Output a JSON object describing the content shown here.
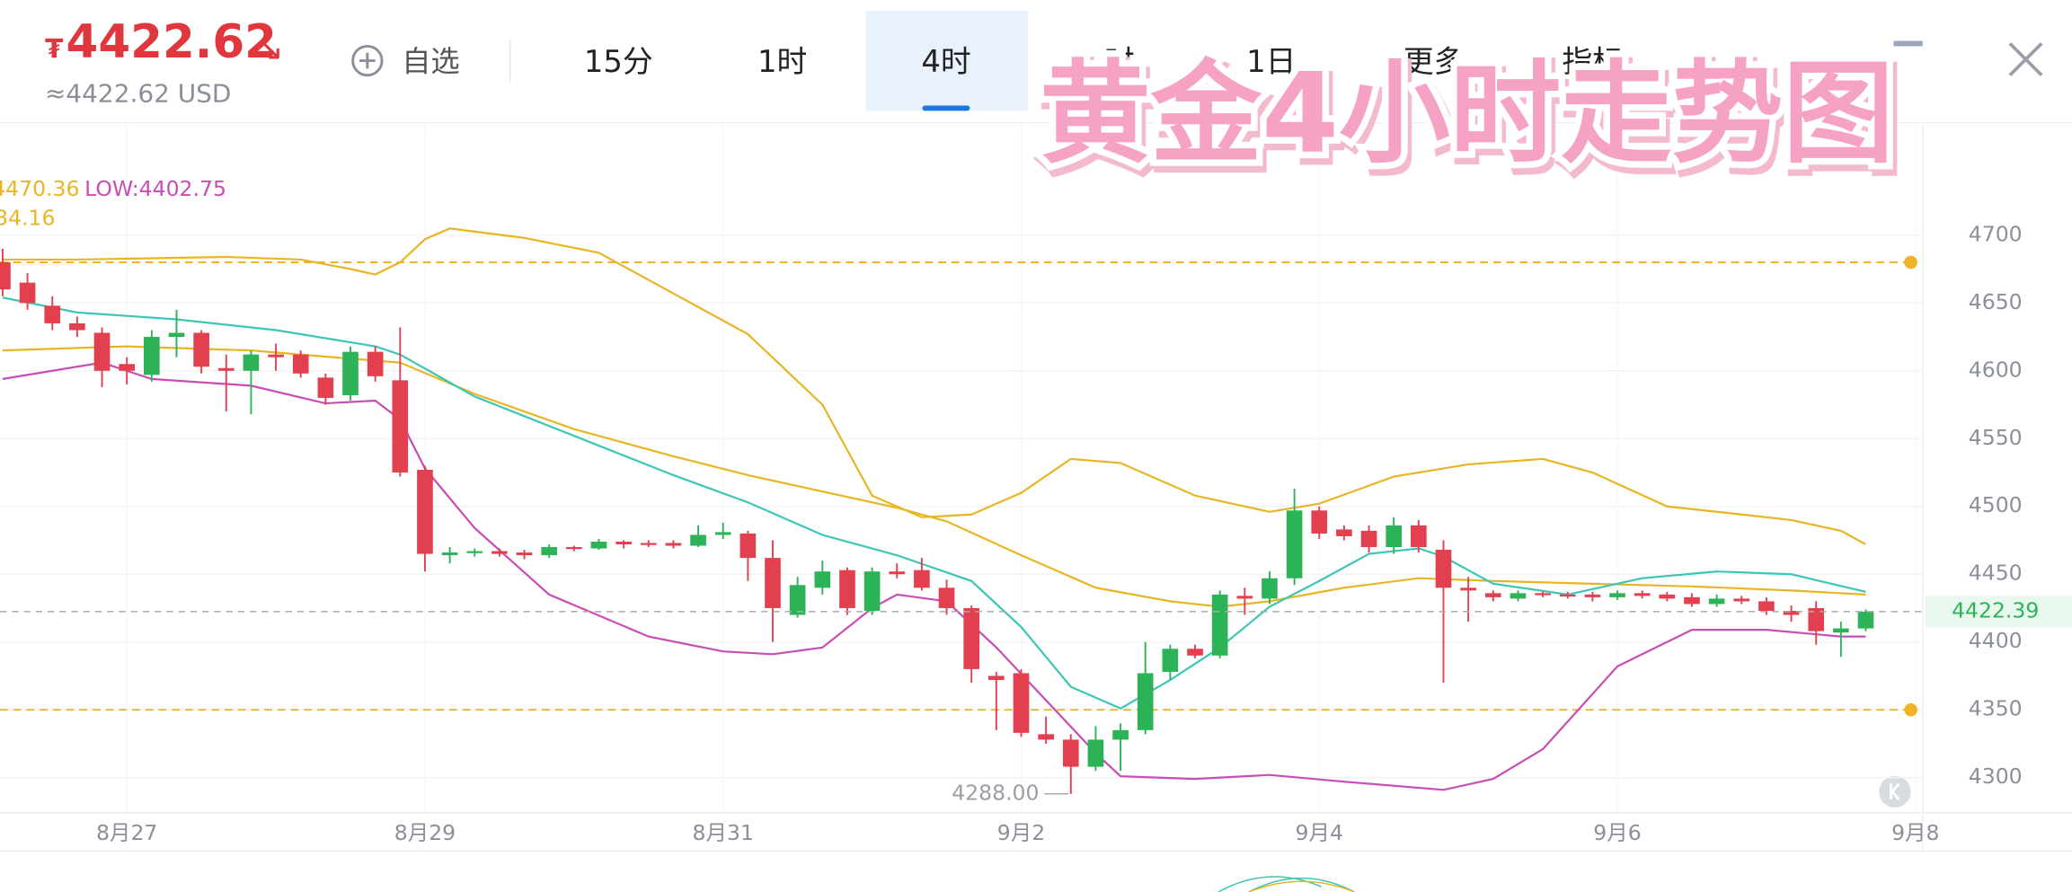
{
  "header": {
    "currency_symbol": "₮",
    "price": "4422.62",
    "arrow": "↘",
    "approx": "≈4422.62 USD",
    "watchlist": "自选",
    "tabs": [
      "15分",
      "1时",
      "4时",
      "时",
      "1日",
      "更多",
      "指标"
    ],
    "selected_tab": 2,
    "overlay_title": "黄金4小时走势图"
  },
  "chart_data": {
    "type": "candlestick",
    "x": [
      0,
      1,
      2,
      3,
      4,
      5,
      6,
      7,
      8,
      9,
      10,
      11,
      12,
      13,
      14,
      15,
      16,
      17,
      18,
      19,
      20,
      21,
      22,
      23,
      24,
      25,
      26,
      27,
      28,
      29,
      30,
      31,
      32,
      33,
      34,
      35,
      36,
      37,
      38,
      39,
      40,
      41,
      42,
      43,
      44,
      45,
      46,
      47,
      48,
      49,
      50,
      51,
      52,
      53,
      54,
      55,
      56,
      57,
      58,
      59,
      60,
      61,
      62,
      63,
      64,
      65,
      66,
      67,
      68,
      69,
      70,
      71,
      72,
      73,
      74,
      75
    ],
    "open": [
      4680,
      4665,
      4648,
      4635,
      4628,
      4605,
      4597,
      4625,
      4628,
      4602,
      4600,
      4612,
      4612,
      4595,
      4582,
      4614,
      4593,
      4527,
      4464,
      4466,
      4467,
      4466,
      4464,
      4470,
      4469,
      4474,
      4473,
      4473,
      4471,
      4479,
      4480,
      4462,
      4420,
      4440,
      4453,
      4423,
      4452,
      4453,
      4440,
      4425,
      4375,
      4377,
      4332,
      4328,
      4308,
      4328,
      4335,
      4378,
      4395,
      4390,
      4434,
      4432,
      4447,
      4497,
      4483,
      4482,
      4470,
      4486,
      4468,
      4440,
      4436,
      4432,
      4436,
      4435,
      4435,
      4433,
      4436,
      4435,
      4433,
      4428,
      4432,
      4430,
      4423,
      4425,
      4407,
      4410
    ],
    "high": [
      4690,
      4672,
      4655,
      4640,
      4632,
      4610,
      4630,
      4645,
      4630,
      4612,
      4615,
      4620,
      4615,
      4598,
      4618,
      4618,
      4632,
      4530,
      4470,
      4469,
      4469,
      4468,
      4472,
      4471,
      4476,
      4475,
      4475,
      4475,
      4486,
      4488,
      4482,
      4475,
      4448,
      4460,
      4455,
      4455,
      4458,
      4462,
      4446,
      4427,
      4378,
      4380,
      4345,
      4332,
      4338,
      4340,
      4400,
      4398,
      4398,
      4438,
      4440,
      4452,
      4513,
      4500,
      4486,
      4486,
      4492,
      4490,
      4475,
      4448,
      4438,
      4438,
      4437,
      4437,
      4437,
      4438,
      4438,
      4437,
      4436,
      4435,
      4434,
      4433,
      4427,
      4430,
      4415,
      4424
    ],
    "low": [
      4655,
      4645,
      4630,
      4625,
      4588,
      4590,
      4592,
      4610,
      4598,
      4570,
      4568,
      4600,
      4595,
      4575,
      4578,
      4592,
      4522,
      4452,
      4458,
      4463,
      4463,
      4461,
      4462,
      4467,
      4468,
      4469,
      4470,
      4469,
      4470,
      4476,
      4445,
      4400,
      4418,
      4435,
      4420,
      4420,
      4447,
      4438,
      4420,
      4370,
      4335,
      4330,
      4325,
      4288,
      4305,
      4305,
      4332,
      4372,
      4388,
      4388,
      4420,
      4428,
      4442,
      4476,
      4475,
      4466,
      4465,
      4466,
      4370,
      4415,
      4430,
      4430,
      4433,
      4432,
      4430,
      4431,
      4432,
      4430,
      4426,
      4426,
      4428,
      4420,
      4415,
      4398,
      4389,
      4408
    ],
    "close": [
      4660,
      4650,
      4635,
      4630,
      4600,
      4600,
      4625,
      4628,
      4603,
      4600,
      4612,
      4610,
      4598,
      4580,
      4614,
      4596,
      4525,
      4465,
      4466,
      4467,
      4465,
      4464,
      4470,
      4469,
      4474,
      4472,
      4472,
      4471,
      4479,
      4481,
      4462,
      4425,
      4442,
      4452,
      4425,
      4452,
      4450,
      4440,
      4425,
      4380,
      4372,
      4333,
      4328,
      4308,
      4328,
      4335,
      4377,
      4395,
      4390,
      4435,
      4432,
      4447,
      4497,
      4480,
      4478,
      4470,
      4486,
      4470,
      4440,
      4438,
      4433,
      4436,
      4435,
      4434,
      4433,
      4436,
      4434,
      4432,
      4428,
      4432,
      4430,
      4423,
      4420,
      4408,
      4410,
      4422.39
    ],
    "up_color": "#2db357",
    "down_color": "#e3404f",
    "lines": [
      {
        "color": "#e8b624",
        "x": [
          0,
          3,
          6,
          9,
          12,
          14,
          15,
          16,
          17,
          18,
          21,
          24,
          27,
          30,
          33,
          35,
          37,
          39,
          41,
          43,
          45,
          48,
          51,
          53,
          56,
          59,
          62,
          64,
          67,
          70,
          72,
          74,
          75
        ],
        "values": [
          4682,
          4682,
          4683,
          4684,
          4682,
          4675,
          4671,
          4680,
          4697,
          4705,
          4698,
          4687,
          4657,
          4627,
          4575,
          4508,
          4492,
          4494,
          4510,
          4535,
          4532,
          4508,
          4496,
          4502,
          4522,
          4531,
          4535,
          4525,
          4500,
          4494,
          4490,
          4482,
          4472
        ]
      },
      {
        "color": "#e8b624",
        "x": [
          0,
          5,
          10,
          14,
          16,
          19,
          23,
          27,
          30,
          33,
          36,
          38,
          41,
          44,
          47,
          49,
          51,
          54,
          57,
          60,
          64,
          68,
          72,
          75
        ],
        "values": [
          4615,
          4618,
          4615,
          4609,
          4606,
          4583,
          4557,
          4537,
          4523,
          4511,
          4499,
          4489,
          4464,
          4440,
          4430,
          4426,
          4430,
          4440,
          4447,
          4445,
          4443,
          4441,
          4438,
          4435
        ]
      },
      {
        "color": "#3cc6b4",
        "x": [
          0,
          3,
          7,
          11,
          15,
          16,
          19,
          23,
          27,
          30,
          33,
          36,
          39,
          41,
          43,
          45,
          47,
          49,
          51,
          53,
          55,
          57,
          58,
          60,
          63,
          66,
          69,
          72,
          75
        ],
        "values": [
          4654,
          4643,
          4638,
          4630,
          4618,
          4612,
          4581,
          4552,
          4523,
          4503,
          4479,
          4464,
          4445,
          4411,
          4367,
          4351,
          4372,
          4396,
          4426,
          4445,
          4465,
          4469,
          4463,
          4443,
          4435,
          4447,
          4452,
          4450,
          4437
        ]
      },
      {
        "color": "#c94db5",
        "x": [
          0,
          4,
          6,
          10,
          13,
          15,
          16,
          17,
          19,
          22,
          26,
          29,
          31,
          33,
          35,
          36,
          38,
          40,
          42,
          44,
          45,
          48,
          51,
          54,
          58,
          60,
          62,
          65,
          68,
          71,
          74,
          75
        ],
        "values": [
          4594,
          4606,
          4594,
          4589,
          4576,
          4578,
          4564,
          4528,
          4484,
          4435,
          4404,
          4393,
          4391,
          4396,
          4425,
          4435,
          4430,
          4396,
          4357,
          4318,
          4301,
          4299,
          4302,
          4297,
          4291,
          4299,
          4321,
          4382,
          4409,
          4409,
          4404,
          4404
        ]
      }
    ],
    "reference_lines": [
      {
        "value": 4680,
        "color": "#f0b429"
      },
      {
        "value": 4350,
        "color": "#f0b429"
      }
    ],
    "last_price": 4422.39,
    "min_annotation": {
      "x": 43,
      "value": 4288,
      "label": "4288.00"
    },
    "indicator_legend": {
      "high": "4470.36",
      "low": "LOW:4402.75",
      "ma": "34.16"
    },
    "xlim": [
      -0.1064,
      77.29
    ],
    "ylim": [
      4275,
      4781
    ],
    "xticks": [
      {
        "value": 5,
        "label": "8月27"
      },
      {
        "value": 17,
        "label": "8月29"
      },
      {
        "value": 29,
        "label": "8月31"
      },
      {
        "value": 41,
        "label": "9月2"
      },
      {
        "value": 53,
        "label": "9月4"
      },
      {
        "value": 65,
        "label": "9月6"
      },
      {
        "value": 77,
        "label": "9月8"
      }
    ],
    "yticks": [
      4300,
      4350,
      4400,
      4450,
      4500,
      4550,
      4600,
      4650,
      4700
    ],
    "grid": true
  }
}
